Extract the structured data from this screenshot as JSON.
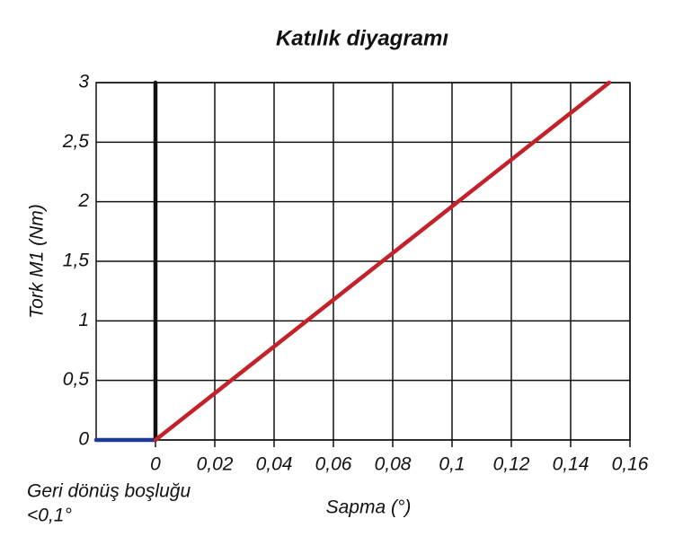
{
  "chart_data": {
    "type": "line",
    "title": "Katılık diyagramı",
    "x_label": "Sapma (°)",
    "y_label": "Tork M1 (Nm)",
    "annotation": [
      "Geri dönüş boşluğu",
      "<0,1°"
    ],
    "xlim": [
      -0.02,
      0.16
    ],
    "xticks": [
      0,
      {
        "value": 0.02,
        "label": "0,02"
      },
      {
        "value": 0.04,
        "label": "0,04"
      },
      {
        "value": 0.06,
        "label": "0,06"
      },
      {
        "value": 0.08,
        "label": "0,08"
      },
      {
        "value": 0.1,
        "label": "0,1"
      },
      {
        "value": 0.12,
        "label": "0,12"
      },
      {
        "value": 0.14,
        "label": "0,14"
      },
      {
        "value": 0.16,
        "label": "0,16"
      }
    ],
    "ylim": [
      0,
      3
    ],
    "yticks": [
      0,
      {
        "value": 0.5,
        "label": "0,5"
      },
      1,
      {
        "value": 1.5,
        "label": "1,5"
      },
      2,
      {
        "value": 2.5,
        "label": "2,5"
      },
      3
    ],
    "grid": true,
    "series": [
      {
        "color": "#1f3a93",
        "x": [
          -0.02,
          0
        ],
        "values": [
          0,
          0
        ]
      },
      {
        "color": "#111111",
        "x": [
          0,
          0
        ],
        "values": [
          0,
          3
        ]
      },
      {
        "color": "#c4222a",
        "x": [
          0,
          0.153
        ],
        "values": [
          0,
          3
        ]
      }
    ]
  }
}
